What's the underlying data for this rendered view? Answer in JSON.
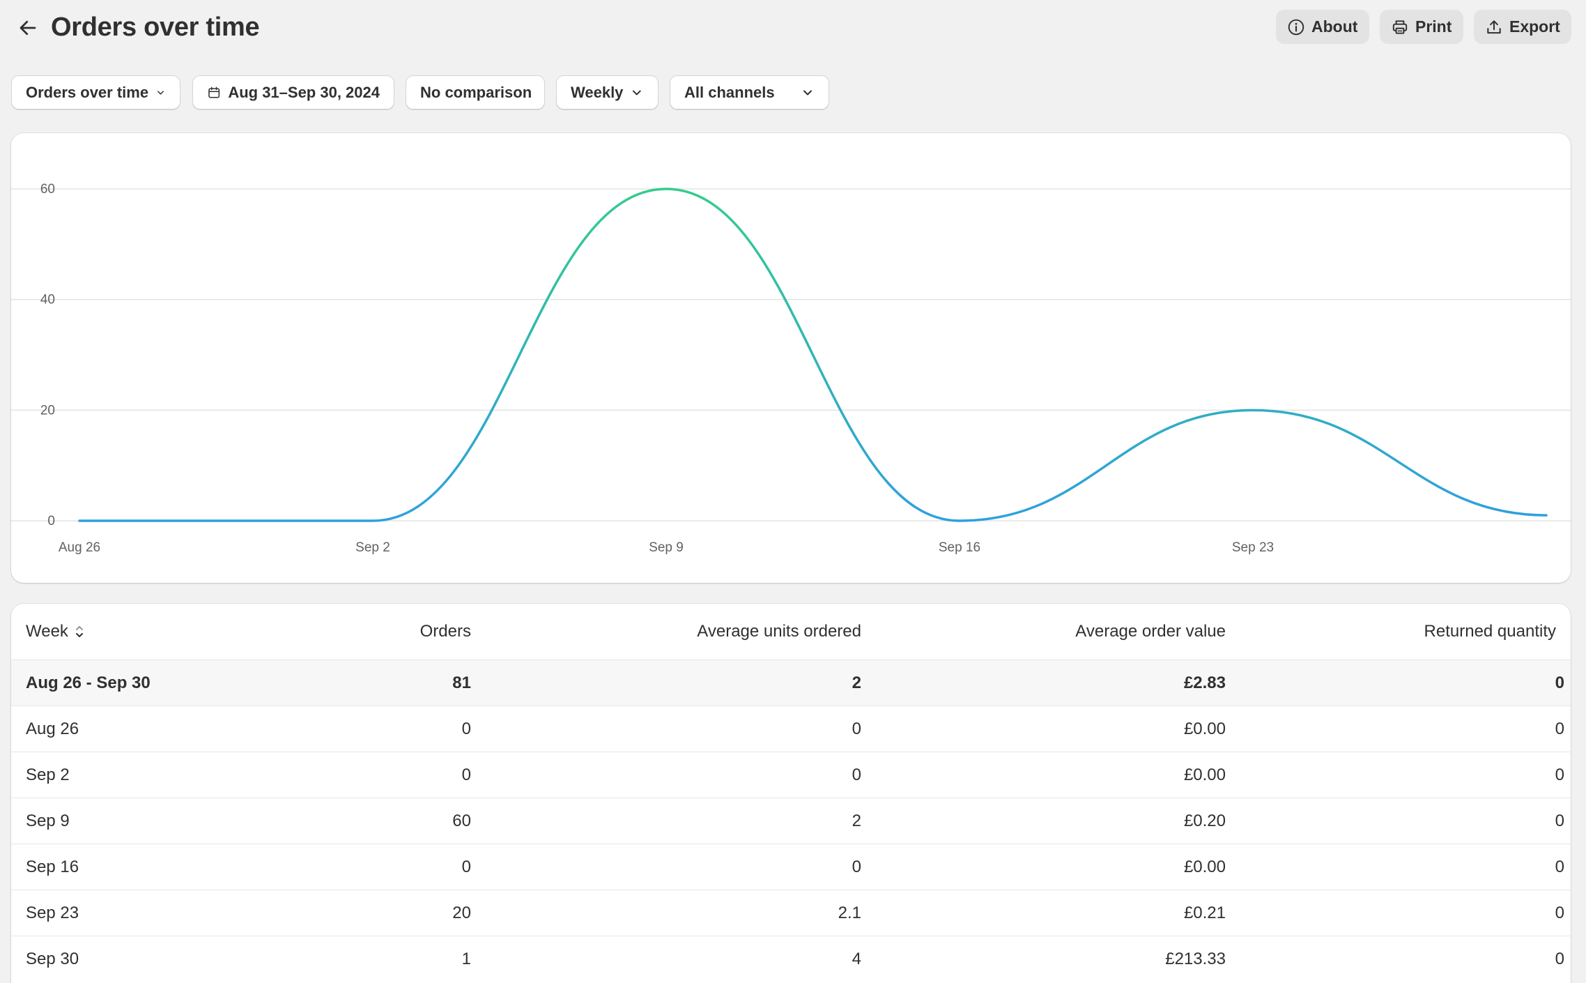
{
  "header": {
    "title": "Orders over time",
    "actions": {
      "about": "About",
      "print": "Print",
      "export": "Export"
    }
  },
  "filters": {
    "report": "Orders over time",
    "date_range": "Aug 31–Sep 30, 2024",
    "comparison": "No comparison",
    "granularity": "Weekly",
    "channels": "All channels"
  },
  "chart_data": {
    "type": "line",
    "x": [
      "Aug 26",
      "Sep 2",
      "Sep 9",
      "Sep 16",
      "Sep 23",
      "Sep 30"
    ],
    "series": [
      {
        "values": [
          0,
          0,
          60,
          0,
          20,
          1
        ]
      }
    ],
    "y_ticks": [
      0,
      20,
      40,
      60
    ],
    "x_tick_labels": [
      "Aug 26",
      "Sep 2",
      "Sep 9",
      "Sep 16",
      "Sep 23"
    ],
    "ylim": [
      0,
      60
    ],
    "grid": true,
    "colors": {
      "line": "#2f9fe0",
      "peak": "#33cc8c",
      "grid": "#e3e3e3",
      "axis": "#616161"
    }
  },
  "table": {
    "columns": [
      "Week",
      "Orders",
      "Average units ordered",
      "Average order value",
      "Returned quantity"
    ],
    "total": [
      "Aug 26 - Sep 30",
      "81",
      "2",
      "£2.83",
      "0"
    ],
    "rows": [
      [
        "Aug 26",
        "0",
        "0",
        "£0.00",
        "0"
      ],
      [
        "Sep 2",
        "0",
        "0",
        "£0.00",
        "0"
      ],
      [
        "Sep 9",
        "60",
        "2",
        "£0.20",
        "0"
      ],
      [
        "Sep 16",
        "0",
        "0",
        "£0.00",
        "0"
      ],
      [
        "Sep 23",
        "20",
        "2.1",
        "£0.21",
        "0"
      ],
      [
        "Sep 30",
        "1",
        "4",
        "£213.33",
        "0"
      ]
    ]
  }
}
